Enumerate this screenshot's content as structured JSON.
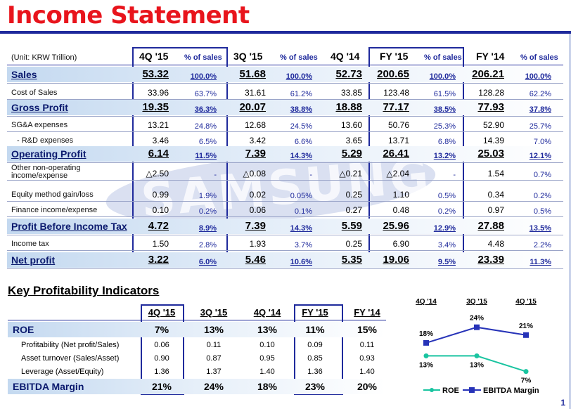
{
  "title": "Income Statement",
  "unit_label": "(Unit: KRW Trillion)",
  "columns": [
    {
      "label": "4Q '15",
      "pct_label": "% of sales"
    },
    {
      "label": "3Q '15",
      "pct_label": "% of sales"
    },
    {
      "label": "4Q '14",
      "pct_label": ""
    },
    {
      "label": "FY '15",
      "pct_label": "% of sales"
    },
    {
      "label": "FY '14",
      "pct_label": "% of sales"
    }
  ],
  "rows": [
    {
      "label": "Sales",
      "bold": true,
      "values": [
        "53.32",
        "100.0%",
        "51.68",
        "100.0%",
        "52.73",
        "200.65",
        "100.0%",
        "206.21",
        "100.0%"
      ]
    },
    {
      "label": "Cost of Sales",
      "bold": false,
      "values": [
        "33.96",
        "63.7%",
        "31.61",
        "61.2%",
        "33.85",
        "123.48",
        "61.5%",
        "128.28",
        "62.2%"
      ]
    },
    {
      "label": "Gross Profit",
      "bold": true,
      "values": [
        "19.35",
        "36.3%",
        "20.07",
        "38.8%",
        "18.88",
        "77.17",
        "38.5%",
        "77.93",
        "37.8%"
      ]
    },
    {
      "label": "SG&A expenses",
      "bold": false,
      "values": [
        "13.21",
        "24.8%",
        "12.68",
        "24.5%",
        "13.60",
        "50.76",
        "25.3%",
        "52.90",
        "25.7%"
      ]
    },
    {
      "label": "- R&D expenses",
      "bold": false,
      "values": [
        "3.46",
        "6.5%",
        "3.42",
        "6.6%",
        "3.65",
        "13.71",
        "6.8%",
        "14.39",
        "7.0%"
      ]
    },
    {
      "label": "Operating Profit",
      "bold": true,
      "values": [
        "6.14",
        "11.5%",
        "7.39",
        "14.3%",
        "5.29",
        "26.41",
        "13.2%",
        "25.03",
        "12.1%"
      ]
    },
    {
      "label": "Other non-operating income/expense",
      "bold": false,
      "values": [
        "△2.50",
        "-",
        "△0.08",
        "-",
        "△0.21",
        "△2.04",
        "-",
        "1.54",
        "0.7%"
      ]
    },
    {
      "label": "Equity method gain/loss",
      "bold": false,
      "values": [
        "0.99",
        "1.9%",
        "0.02",
        "0.05%",
        "0.25",
        "1.10",
        "0.5%",
        "0.34",
        "0.2%"
      ]
    },
    {
      "label": "Finance income/expense",
      "bold": false,
      "values": [
        "0.10",
        "0.2%",
        "0.06",
        "0.1%",
        "0.27",
        "0.48",
        "0.2%",
        "0.97",
        "0.5%"
      ]
    },
    {
      "label": "Profit Before Income Tax",
      "bold": true,
      "values": [
        "4.72",
        "8.9%",
        "7.39",
        "14.3%",
        "5.59",
        "25.96",
        "12.9%",
        "27.88",
        "13.5%"
      ]
    },
    {
      "label": "Income tax",
      "bold": false,
      "values": [
        "1.50",
        "2.8%",
        "1.93",
        "3.7%",
        "0.25",
        "6.90",
        "3.4%",
        "4.48",
        "2.2%"
      ]
    },
    {
      "label": "Net profit",
      "bold": true,
      "values": [
        "3.22",
        "6.0%",
        "5.46",
        "10.6%",
        "5.35",
        "19.06",
        "9.5%",
        "23.39",
        "11.3%"
      ]
    }
  ],
  "kpi": {
    "title": "Key Profitability Indicators",
    "columns": [
      "4Q '15",
      "3Q '15",
      "4Q '14",
      "FY '15",
      "FY '14"
    ],
    "rows": [
      {
        "label": "ROE",
        "bold": true,
        "values": [
          "7%",
          "13%",
          "13%",
          "11%",
          "15%"
        ]
      },
      {
        "label": "Profitability (Net profit/Sales)",
        "bold": false,
        "values": [
          "0.06",
          "0.11",
          "0.10",
          "0.09",
          "0.11"
        ]
      },
      {
        "label": "Asset turnover (Sales/Asset)",
        "bold": false,
        "values": [
          "0.90",
          "0.87",
          "0.95",
          "0.85",
          "0.93"
        ]
      },
      {
        "label": "Leverage (Asset/Equity)",
        "bold": false,
        "values": [
          "1.36",
          "1.37",
          "1.40",
          "1.36",
          "1.40"
        ]
      },
      {
        "label": "EBITDA Margin",
        "bold": true,
        "values": [
          "21%",
          "24%",
          "18%",
          "23%",
          "20%"
        ]
      }
    ]
  },
  "chart_data": {
    "type": "line",
    "categories": [
      "4Q '14",
      "3Q '15",
      "4Q '15"
    ],
    "series": [
      {
        "name": "ROE",
        "values": [
          13,
          13,
          7
        ],
        "labels": [
          "13%",
          "13%",
          "7%"
        ],
        "color": "#19c4a0"
      },
      {
        "name": "EBITDA Margin",
        "values": [
          18,
          24,
          21
        ],
        "labels": [
          "18%",
          "24%",
          "21%"
        ],
        "color": "#2733b8"
      }
    ]
  },
  "page_number": "1",
  "watermark": "SAMSUNG"
}
